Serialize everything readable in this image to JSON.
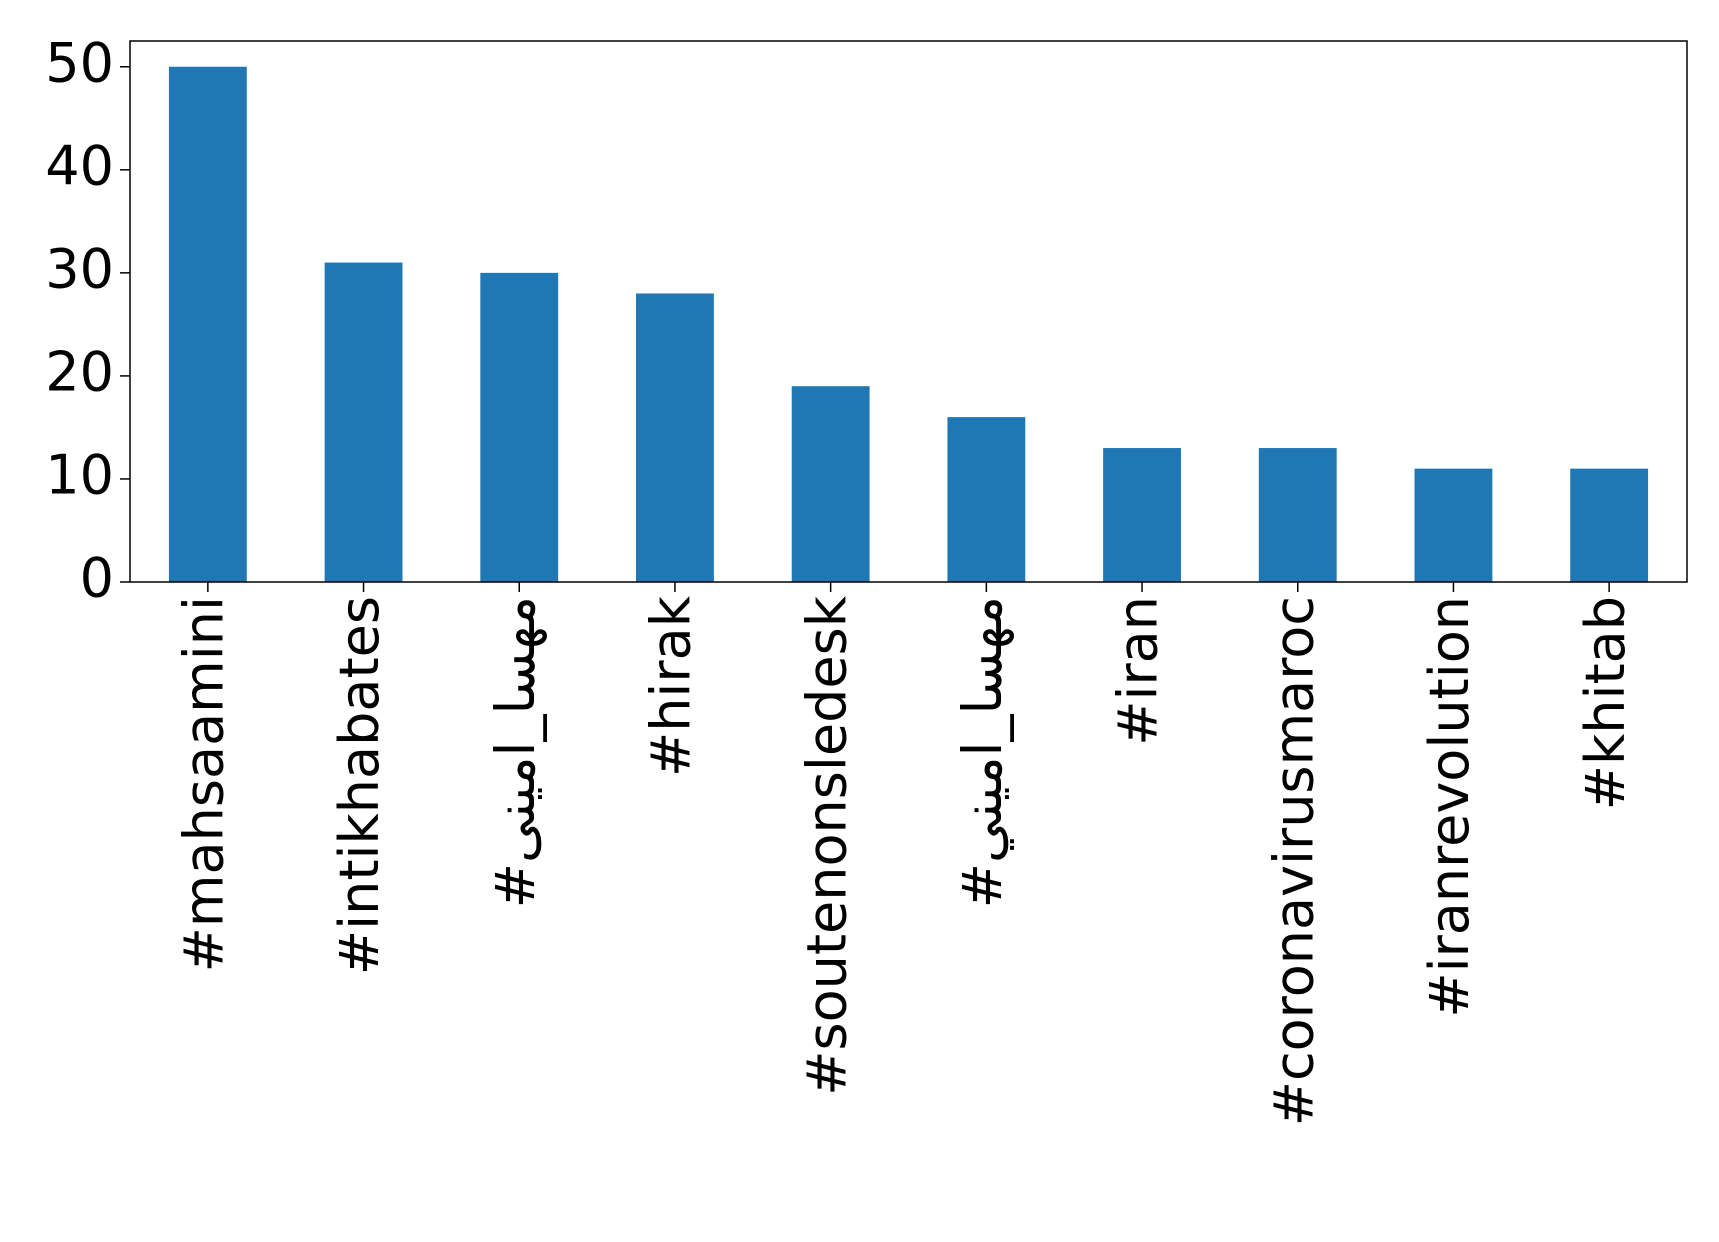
{
  "chart_data": {
    "type": "bar",
    "categories": [
      "#mahsaamini",
      "#intikhabates",
      "#مهسا_امینی",
      "#hirak",
      "#soutenonsledesk",
      "#مهسا_اميني",
      "#iran",
      "#coronavirusmaroc",
      "#iranrevolution",
      "#khitab"
    ],
    "values": [
      50,
      31,
      30,
      28,
      19,
      16,
      13,
      13,
      11,
      11
    ],
    "color": "#1f77b4",
    "ylim": [
      0,
      52.5
    ],
    "yticks": [
      0,
      10,
      20,
      30,
      40,
      50
    ],
    "grid": false
  }
}
